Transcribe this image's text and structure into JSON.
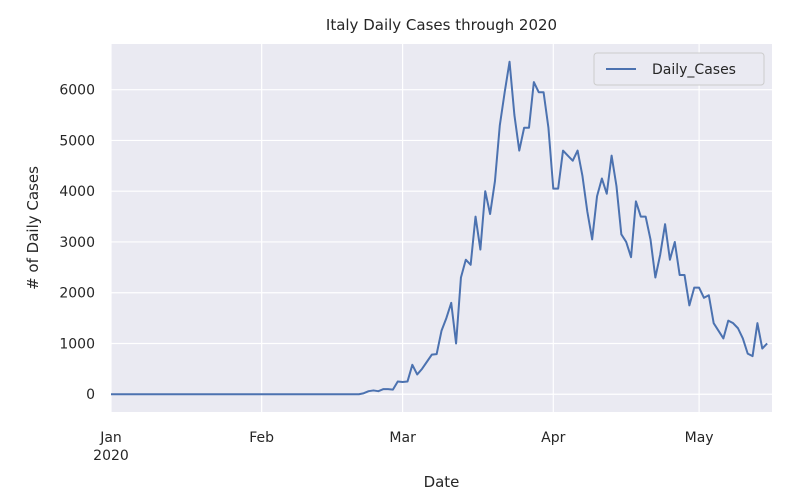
{
  "chart_data": {
    "type": "line",
    "title": "Italy Daily Cases through 2020",
    "xlabel": "Date",
    "ylabel": "# of Daily Cases",
    "x_start": "2020-01-01",
    "x_end": "2020-05-16",
    "xlim": [
      "2020-01-01",
      "2020-05-16"
    ],
    "ylim": [
      -350,
      6900
    ],
    "grid": true,
    "legend_position": "top-right",
    "x_ticks": [
      {
        "date": "2020-01-01",
        "label": "Jan",
        "sublabel": "2020"
      },
      {
        "date": "2020-02-01",
        "label": "Feb",
        "sublabel": ""
      },
      {
        "date": "2020-03-01",
        "label": "Mar",
        "sublabel": ""
      },
      {
        "date": "2020-04-01",
        "label": "Apr",
        "sublabel": ""
      },
      {
        "date": "2020-05-01",
        "label": "May",
        "sublabel": ""
      }
    ],
    "y_ticks": [
      0,
      1000,
      2000,
      3000,
      4000,
      5000,
      6000
    ],
    "colors": {
      "background": "#eaeaf2",
      "grid": "#ffffff",
      "line": "#4c72b0"
    },
    "series": [
      {
        "name": "Daily_Cases",
        "points": [
          [
            "2020-01-01",
            0
          ],
          [
            "2020-02-21",
            0
          ],
          [
            "2020-02-22",
            20
          ],
          [
            "2020-02-23",
            60
          ],
          [
            "2020-02-24",
            75
          ],
          [
            "2020-02-25",
            60
          ],
          [
            "2020-02-26",
            100
          ],
          [
            "2020-02-27",
            100
          ],
          [
            "2020-02-28",
            90
          ],
          [
            "2020-02-29",
            250
          ],
          [
            "2020-03-01",
            240
          ],
          [
            "2020-03-02",
            250
          ],
          [
            "2020-03-03",
            580
          ],
          [
            "2020-03-04",
            390
          ],
          [
            "2020-03-05",
            500
          ],
          [
            "2020-03-06",
            640
          ],
          [
            "2020-03-07",
            780
          ],
          [
            "2020-03-08",
            790
          ],
          [
            "2020-03-09",
            1250
          ],
          [
            "2020-03-10",
            1500
          ],
          [
            "2020-03-11",
            1800
          ],
          [
            "2020-03-12",
            1000
          ],
          [
            "2020-03-13",
            2300
          ],
          [
            "2020-03-14",
            2650
          ],
          [
            "2020-03-15",
            2550
          ],
          [
            "2020-03-16",
            3500
          ],
          [
            "2020-03-17",
            2850
          ],
          [
            "2020-03-18",
            4000
          ],
          [
            "2020-03-19",
            3550
          ],
          [
            "2020-03-20",
            4200
          ],
          [
            "2020-03-21",
            5300
          ],
          [
            "2020-03-22",
            5950
          ],
          [
            "2020-03-23",
            6550
          ],
          [
            "2020-03-24",
            5500
          ],
          [
            "2020-03-25",
            4800
          ],
          [
            "2020-03-26",
            5250
          ],
          [
            "2020-03-27",
            5250
          ],
          [
            "2020-03-28",
            6150
          ],
          [
            "2020-03-29",
            5950
          ],
          [
            "2020-03-30",
            5950
          ],
          [
            "2020-03-31",
            5250
          ],
          [
            "2020-04-01",
            4050
          ],
          [
            "2020-04-02",
            4050
          ],
          [
            "2020-04-03",
            4800
          ],
          [
            "2020-04-04",
            4700
          ],
          [
            "2020-04-05",
            4600
          ],
          [
            "2020-04-06",
            4800
          ],
          [
            "2020-04-07",
            4300
          ],
          [
            "2020-04-08",
            3600
          ],
          [
            "2020-04-09",
            3050
          ],
          [
            "2020-04-10",
            3900
          ],
          [
            "2020-04-11",
            4250
          ],
          [
            "2020-04-12",
            3950
          ],
          [
            "2020-04-13",
            4700
          ],
          [
            "2020-04-14",
            4100
          ],
          [
            "2020-04-15",
            3150
          ],
          [
            "2020-04-16",
            3000
          ],
          [
            "2020-04-17",
            2700
          ],
          [
            "2020-04-18",
            3800
          ],
          [
            "2020-04-19",
            3500
          ],
          [
            "2020-04-20",
            3500
          ],
          [
            "2020-04-21",
            3050
          ],
          [
            "2020-04-22",
            2300
          ],
          [
            "2020-04-23",
            2750
          ],
          [
            "2020-04-24",
            3350
          ],
          [
            "2020-04-25",
            2650
          ],
          [
            "2020-04-26",
            3000
          ],
          [
            "2020-04-27",
            2350
          ],
          [
            "2020-04-28",
            2350
          ],
          [
            "2020-04-29",
            1750
          ],
          [
            "2020-04-30",
            2100
          ],
          [
            "2020-05-01",
            2100
          ],
          [
            "2020-05-02",
            1900
          ],
          [
            "2020-05-03",
            1950
          ],
          [
            "2020-05-04",
            1400
          ],
          [
            "2020-05-05",
            1250
          ],
          [
            "2020-05-06",
            1100
          ],
          [
            "2020-05-07",
            1450
          ],
          [
            "2020-05-08",
            1400
          ],
          [
            "2020-05-09",
            1300
          ],
          [
            "2020-05-10",
            1100
          ],
          [
            "2020-05-11",
            800
          ],
          [
            "2020-05-12",
            750
          ],
          [
            "2020-05-13",
            1400
          ],
          [
            "2020-05-14",
            900
          ],
          [
            "2020-05-15",
            1000
          ]
        ]
      }
    ]
  }
}
